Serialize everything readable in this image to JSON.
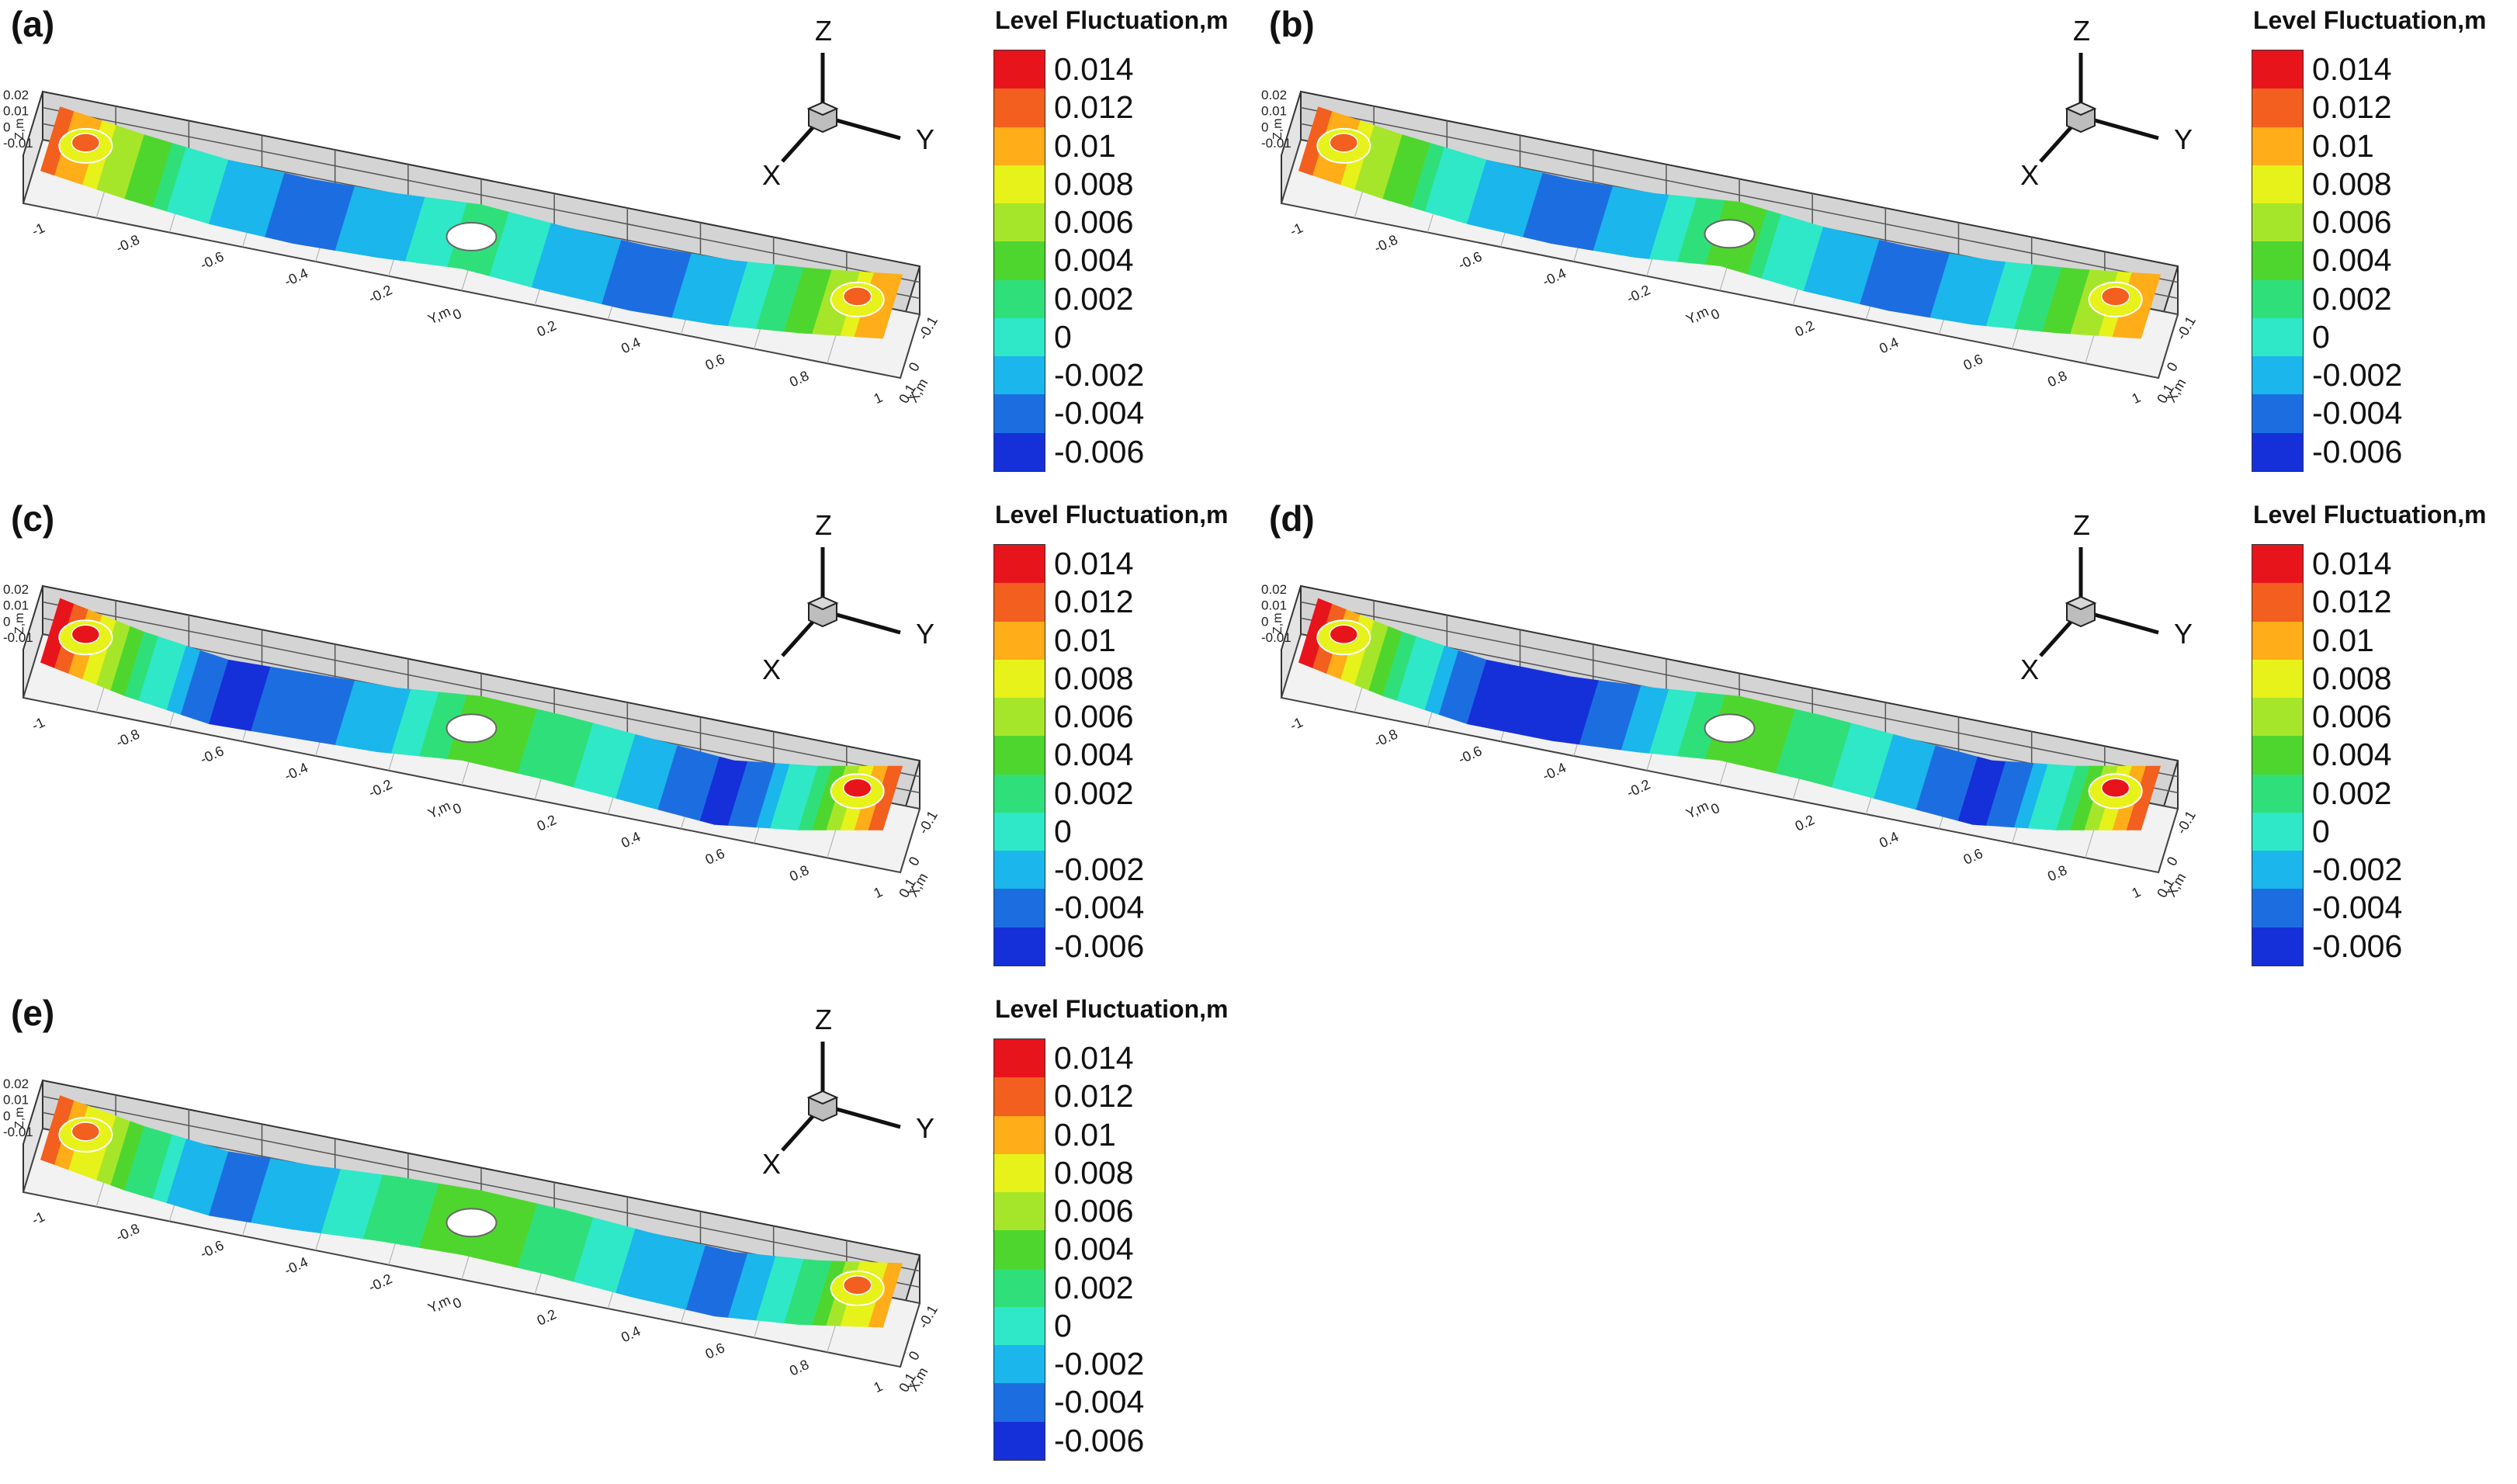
{
  "figure": {
    "panels": [
      "(a)",
      "(b)",
      "(c)",
      "(d)",
      "(e)"
    ]
  },
  "triad": {
    "z": "Z",
    "y": "Y",
    "x": "X"
  },
  "legend": {
    "title": "Level Fluctuation,m",
    "levels": [
      "0.014",
      "0.012",
      "0.01",
      "0.008",
      "0.006",
      "0.004",
      "0.002",
      "0",
      "-0.002",
      "-0.004",
      "-0.006"
    ],
    "colors": [
      "#e8141c",
      "#f25f1e",
      "#ffad18",
      "#e6f21a",
      "#a6e62a",
      "#4fd62e",
      "#2fe07a",
      "#2ee8c8",
      "#1ab6ec",
      "#1c6ee0",
      "#1530d8"
    ]
  },
  "axes": {
    "y_label": "Y,m",
    "x_label": "X,m",
    "z_label": "Z,m",
    "y_ticks": [
      "-1",
      "-0.8",
      "-0.6",
      "-0.4",
      "-0.2",
      "0",
      "0.2",
      "0.4",
      "0.6",
      "0.8",
      "1"
    ],
    "x_ticks": [
      "0.1",
      "0",
      "-0.1"
    ],
    "z_ticks": [
      "0.02",
      "0.01",
      "0",
      "-0.01"
    ]
  },
  "chart_data": [
    {
      "panel": "(a)",
      "type": "heatmap",
      "x": [
        -1,
        -0.8,
        -0.6,
        -0.4,
        -0.2,
        0,
        0.2,
        0.4,
        0.6,
        0.8,
        1
      ],
      "values": [
        0.012,
        0.004,
        -0.002,
        -0.004,
        -0.002,
        0.002,
        -0.002,
        -0.004,
        -0.002,
        0.004,
        0.012
      ]
    },
    {
      "panel": "(b)",
      "type": "heatmap",
      "x": [
        -1,
        -0.8,
        -0.6,
        -0.4,
        -0.2,
        0,
        0.2,
        0.4,
        0.6,
        0.8,
        1
      ],
      "values": [
        0.012,
        0.004,
        -0.002,
        -0.004,
        -0.002,
        0.004,
        -0.002,
        -0.004,
        -0.002,
        0.004,
        0.012
      ]
    },
    {
      "panel": "(c)",
      "type": "heatmap",
      "x": [
        -1,
        -0.8,
        -0.6,
        -0.4,
        -0.2,
        0,
        0.2,
        0.4,
        0.6,
        0.8,
        1
      ],
      "values": [
        0.014,
        0.002,
        -0.006,
        -0.004,
        -0.002,
        0.004,
        0.002,
        -0.002,
        -0.006,
        0.002,
        0.014
      ]
    },
    {
      "panel": "(d)",
      "type": "heatmap",
      "x": [
        -1,
        -0.8,
        -0.6,
        -0.4,
        -0.2,
        0,
        0.2,
        0.4,
        0.6,
        0.8,
        1
      ],
      "values": [
        0.014,
        0.002,
        -0.006,
        -0.006,
        -0.002,
        0.004,
        0.002,
        -0.002,
        -0.006,
        0.002,
        0.014
      ]
    },
    {
      "panel": "(e)",
      "type": "heatmap",
      "x": [
        -1,
        -0.8,
        -0.6,
        -0.4,
        -0.2,
        0,
        0.2,
        0.4,
        0.6,
        0.8,
        1
      ],
      "values": [
        0.012,
        0.002,
        -0.004,
        -0.002,
        0.002,
        0.004,
        0.002,
        -0.002,
        -0.004,
        0.002,
        0.012
      ]
    }
  ]
}
